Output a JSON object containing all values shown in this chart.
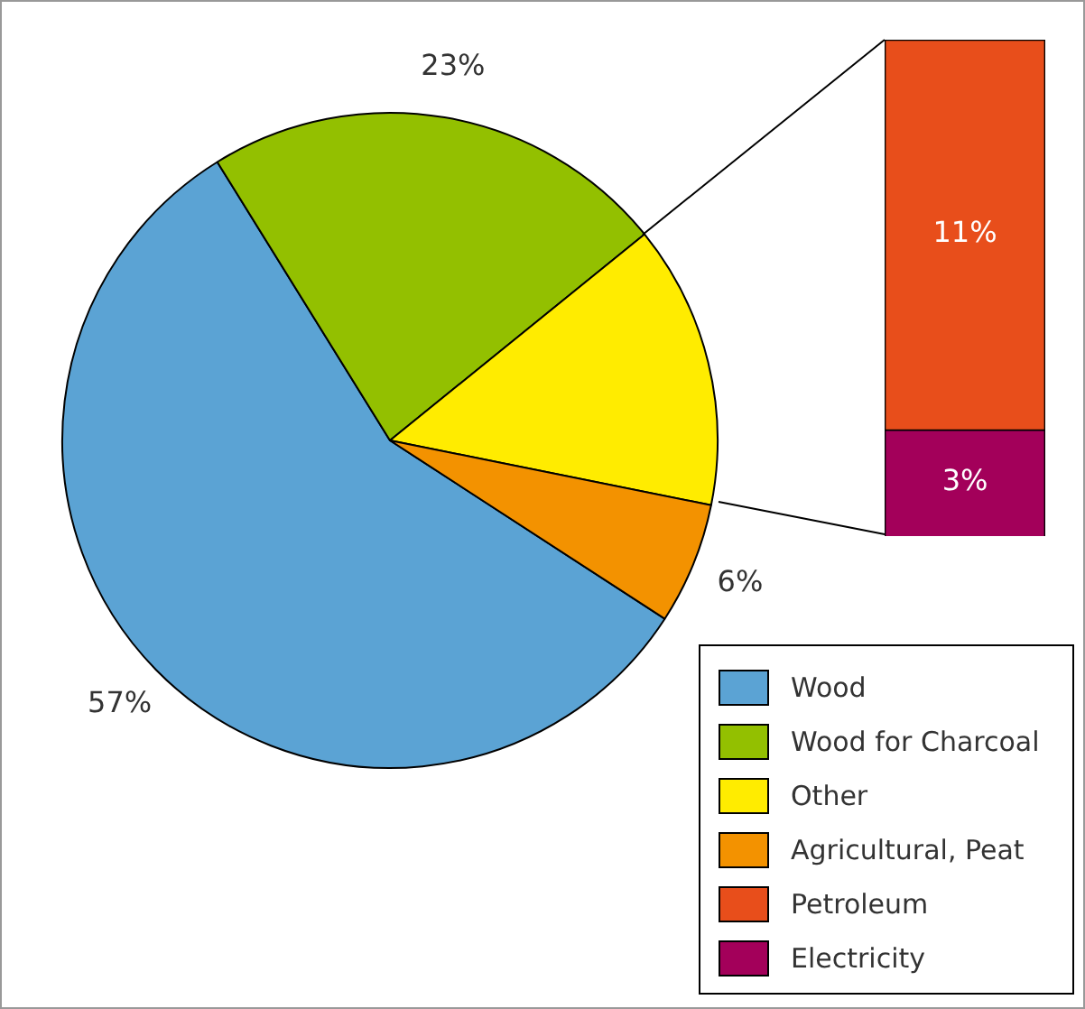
{
  "chart_data": [
    {
      "type": "pie",
      "categories": [
        "Wood",
        "Wood for Charcoal",
        "Other",
        "Agricultural, Peat"
      ],
      "values": [
        57,
        23,
        14,
        6
      ],
      "colors": [
        "#5ba3d4",
        "#93c000",
        "#ffec00",
        "#f39200"
      ],
      "value_labels": [
        "57%",
        "23%",
        null,
        "6%"
      ],
      "legend": "bottom right"
    },
    {
      "type": "bar",
      "stacked": true,
      "legend": "bottom left",
      "categories": [
        null
      ],
      "series": [
        {
          "name": "Electricity",
          "color": "#a3005a",
          "values": [
            3
          ],
          "value_labels": [
            "3%"
          ]
        },
        {
          "name": "Petroleum",
          "color": "#e84e1b",
          "values": [
            11
          ],
          "value_labels": [
            "11%"
          ]
        }
      ]
    }
  ]
}
